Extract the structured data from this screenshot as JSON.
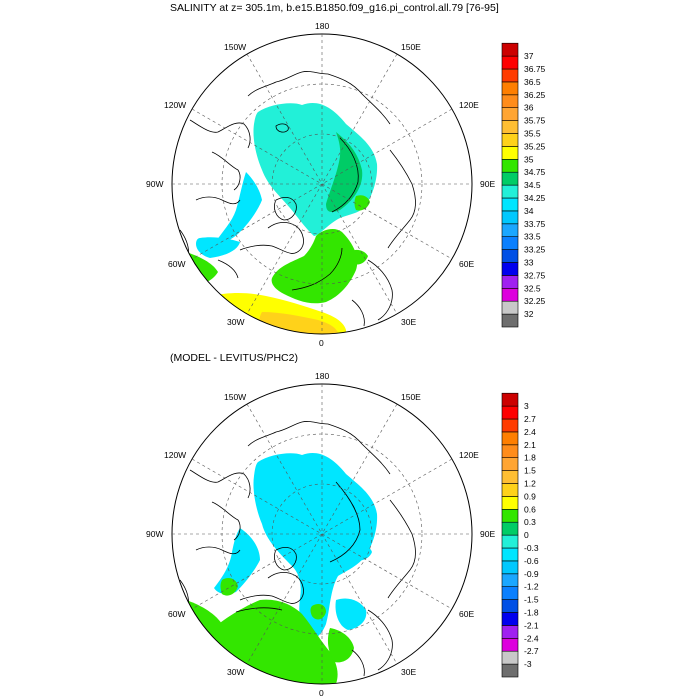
{
  "panel1": {
    "title": "SALINITY at z= 305.1m, b.e15.B1850.f09_g16.pi_control.all.79 [76-95]",
    "colorbar": {
      "colors": [
        "#6e6e6e",
        "#c8c8c8",
        "#dd00dd",
        "#a020f0",
        "#0000ee",
        "#0050e6",
        "#0a80ff",
        "#1aa7ff",
        "#00c8ff",
        "#00e6ff",
        "#22f0d8",
        "#00cc66",
        "#33e600",
        "#ffff00",
        "#ffd21a",
        "#ffbf33",
        "#ffa533",
        "#ff8c1a",
        "#ff7f00",
        "#ff3b00",
        "#ff0000",
        "#cc0000"
      ],
      "labels": [
        "32",
        "32.25",
        "32.5",
        "32.75",
        "33",
        "33.25",
        "33.5",
        "33.75",
        "34",
        "34.25",
        "34.5",
        "34.75",
        "35",
        "35.25",
        "35.5",
        "35.75",
        "36",
        "36.25",
        "36.5",
        "36.75",
        "37"
      ]
    }
  },
  "panel2": {
    "title": "(MODEL - LEVITUS/PHC2)",
    "colorbar": {
      "colors": [
        "#6e6e6e",
        "#c8c8c8",
        "#dd00dd",
        "#a020f0",
        "#0000ee",
        "#0050e6",
        "#0a80ff",
        "#1aa7ff",
        "#00c8ff",
        "#00e6ff",
        "#22f0d8",
        "#00cc66",
        "#33e600",
        "#ffff00",
        "#ffd21a",
        "#ffbf33",
        "#ffa533",
        "#ff8c1a",
        "#ff7f00",
        "#ff3b00",
        "#ff0000",
        "#cc0000"
      ],
      "labels": [
        "-3",
        "-2.7",
        "-2.4",
        "-2.1",
        "-1.8",
        "-1.5",
        "-1.2",
        "-0.9",
        "-0.6",
        "-0.3",
        "0",
        "0.3",
        "0.6",
        "0.9",
        "1.2",
        "1.5",
        "1.8",
        "2.1",
        "2.4",
        "2.7",
        "3"
      ]
    }
  },
  "longitudes": [
    "180",
    "150E",
    "120E",
    "90E",
    "60E",
    "30E",
    "0",
    "30W",
    "60W",
    "90W",
    "120W",
    "150W"
  ]
}
